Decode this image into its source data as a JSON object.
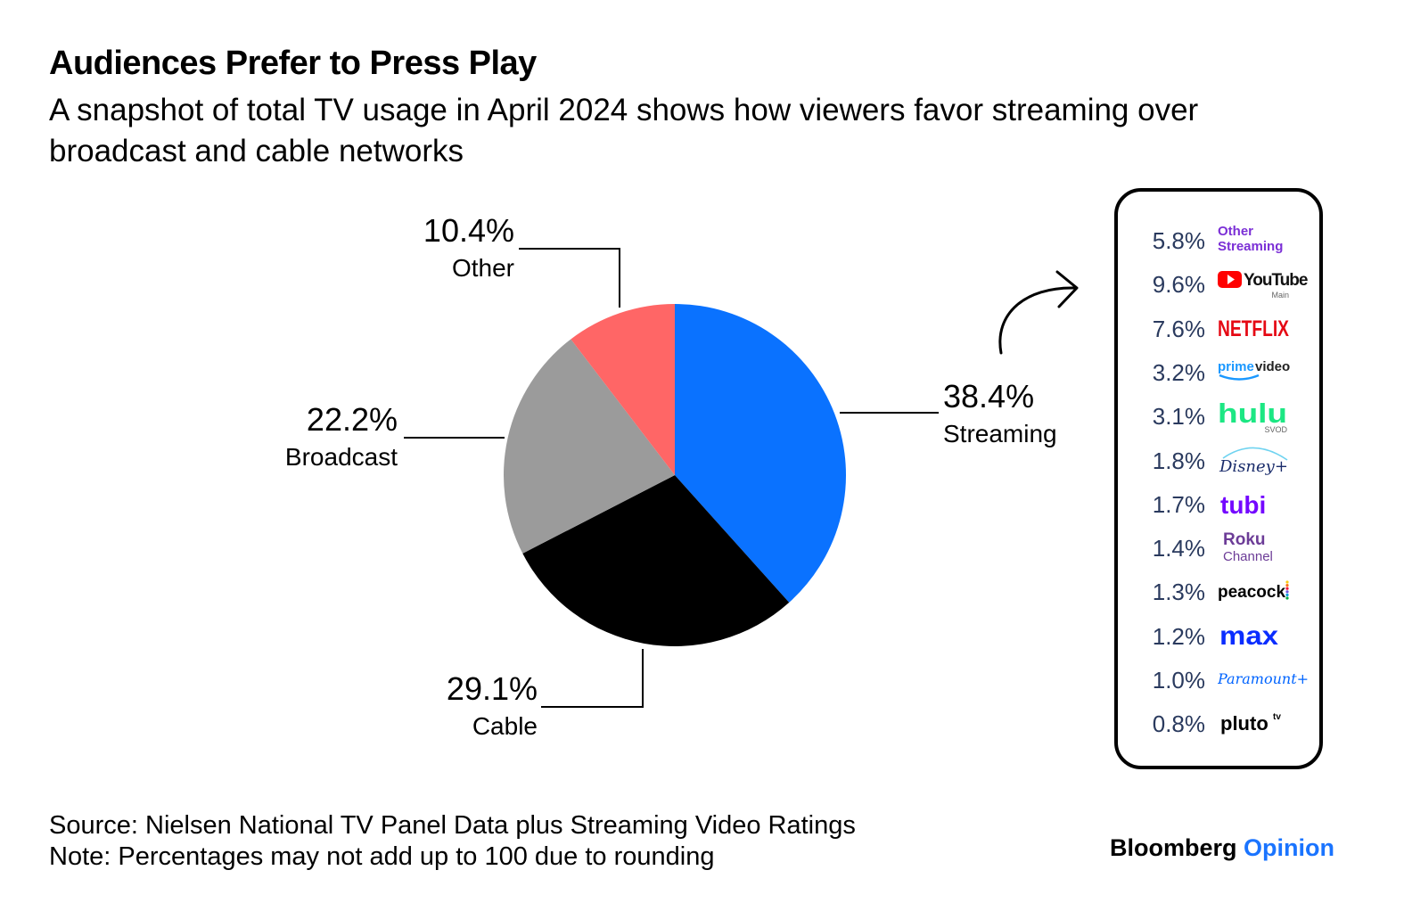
{
  "title": "Audiences Prefer to Press Play",
  "subtitle": "A snapshot of total TV usage in April 2024 shows how viewers favor streaming over broadcast and cable networks",
  "footer": {
    "source": "Source: Nielsen National TV Panel Data plus Streaming Video Ratings",
    "note": "Note: Percentages may not add up to 100 due to rounding"
  },
  "brand": {
    "name": "Bloomberg",
    "suffix": "Opinion"
  },
  "chart_data": {
    "type": "pie",
    "title": "Audiences Prefer to Press Play",
    "slices": [
      {
        "name": "Streaming",
        "value": 38.4,
        "label": "38.4%",
        "color": "#0a72ff"
      },
      {
        "name": "Cable",
        "value": 29.1,
        "label": "29.1%",
        "color": "#000000"
      },
      {
        "name": "Broadcast",
        "value": 22.2,
        "label": "22.2%",
        "color": "#9b9b9b"
      },
      {
        "name": "Other",
        "value": 10.4,
        "label": "10.4%",
        "color": "#ff6666"
      }
    ],
    "streaming_breakdown": [
      {
        "name": "Other Streaming",
        "label": "5.8%",
        "value": 5.8,
        "logo": "other-streaming",
        "logo_text": [
          "Other",
          "Streaming"
        ],
        "color": "#7b2fd6"
      },
      {
        "name": "YouTube",
        "label": "9.6%",
        "value": 9.6,
        "logo": "youtube",
        "logo_text": [
          "YouTube",
          "Main"
        ],
        "color": "#ff0000"
      },
      {
        "name": "Netflix",
        "label": "7.6%",
        "value": 7.6,
        "logo": "netflix",
        "logo_text": [
          "NETFLIX"
        ],
        "color": "#e50914"
      },
      {
        "name": "Prime Video",
        "label": "3.2%",
        "value": 3.2,
        "logo": "prime-video",
        "logo_text": [
          "prime",
          "video"
        ],
        "color": "#1a98ff"
      },
      {
        "name": "Hulu",
        "label": "3.1%",
        "value": 3.1,
        "logo": "hulu",
        "logo_text": [
          "hulu",
          "SVOD"
        ],
        "color": "#1ce783"
      },
      {
        "name": "Disney+",
        "label": "1.8%",
        "value": 1.8,
        "logo": "disney-plus",
        "logo_text": [
          "Disney+"
        ],
        "color": "#1a2c6b"
      },
      {
        "name": "Tubi",
        "label": "1.7%",
        "value": 1.7,
        "logo": "tubi",
        "logo_text": [
          "tubi"
        ],
        "color": "#7408ff"
      },
      {
        "name": "Roku Channel",
        "label": "1.4%",
        "value": 1.4,
        "logo": "roku-channel",
        "logo_text": [
          "Roku",
          "Channel"
        ],
        "color": "#6c3c97"
      },
      {
        "name": "Peacock",
        "label": "1.3%",
        "value": 1.3,
        "logo": "peacock",
        "logo_text": [
          "peacock"
        ],
        "color": "#000000"
      },
      {
        "name": "Max",
        "label": "1.2%",
        "value": 1.2,
        "logo": "max",
        "logo_text": [
          "max"
        ],
        "color": "#0a2dff"
      },
      {
        "name": "Paramount+",
        "label": "1.0%",
        "value": 1.0,
        "logo": "paramount-plus",
        "logo_text": [
          "Paramount+"
        ],
        "color": "#0064ff"
      },
      {
        "name": "Pluto TV",
        "label": "0.8%",
        "value": 0.8,
        "logo": "pluto-tv",
        "logo_text": [
          "pluto",
          "tv"
        ],
        "color": "#000000"
      }
    ]
  },
  "icons": {
    "arrow": "curved-arrow-icon"
  }
}
